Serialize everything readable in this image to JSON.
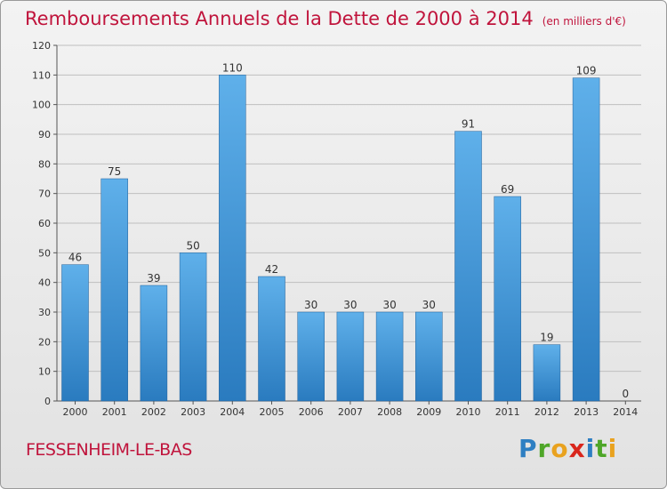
{
  "header": {
    "title": "Remboursements Annuels de la Dette de 2000 à 2014",
    "subtitle": "(en milliers d'€)"
  },
  "footer": {
    "place": "FESSENHEIM-LE-BAS",
    "logo": [
      "P",
      "r",
      "o",
      "x",
      "i",
      "t",
      "i"
    ],
    "logo_colors": [
      "#2e7fc2",
      "#4ea628",
      "#e9a21f",
      "#d9261c",
      "#2e7fc2",
      "#4ea628",
      "#e9a21f"
    ]
  },
  "colors": {
    "bar_top": "#5fb0ea",
    "bar_bottom": "#2a7bbf",
    "title": "#c0143c",
    "grid": "#bfbfbf"
  },
  "chart_data": {
    "type": "bar",
    "categories": [
      "2000",
      "2001",
      "2002",
      "2003",
      "2004",
      "2005",
      "2006",
      "2007",
      "2008",
      "2009",
      "2010",
      "2011",
      "2012",
      "2013",
      "2014"
    ],
    "values": [
      46,
      75,
      39,
      50,
      110,
      42,
      30,
      30,
      30,
      30,
      91,
      69,
      19,
      109,
      0
    ],
    "ylim": [
      0,
      120
    ],
    "yticks": [
      0,
      10,
      20,
      30,
      40,
      50,
      60,
      70,
      80,
      90,
      100,
      110,
      120
    ],
    "grid": true
  }
}
